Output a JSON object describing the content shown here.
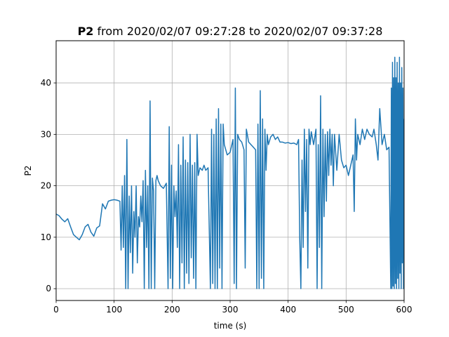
{
  "title": {
    "bold": "P2",
    "rest": " from 2020/02/07 09:27:28 to 2020/02/07 09:37:28"
  },
  "chart_data": {
    "type": "line",
    "xlabel": "time (s)",
    "ylabel": "P2",
    "xlim": [
      0,
      600
    ],
    "ylim": [
      -2.3,
      48.2
    ],
    "grid": true,
    "line_color": "#1f77b4",
    "xticks": [
      0,
      100,
      200,
      300,
      400,
      500,
      600
    ],
    "yticks": [
      0,
      10,
      20,
      30,
      40
    ],
    "series": [
      {
        "points": [
          [
            0,
            14.5
          ],
          [
            5,
            14.2
          ],
          [
            10,
            13.5
          ],
          [
            15,
            13.0
          ],
          [
            20,
            13.6
          ],
          [
            25,
            12.0
          ],
          [
            30,
            10.5
          ],
          [
            35,
            10.0
          ],
          [
            40,
            9.5
          ],
          [
            45,
            10.5
          ],
          [
            50,
            12.0
          ],
          [
            55,
            12.5
          ],
          [
            60,
            11.0
          ],
          [
            65,
            10.2
          ],
          [
            70,
            11.8
          ],
          [
            75,
            12.2
          ],
          [
            80,
            16.5
          ],
          [
            85,
            15.5
          ],
          [
            90,
            17.0
          ],
          [
            95,
            17.2
          ],
          [
            100,
            17.3
          ],
          [
            105,
            17.2
          ],
          [
            110,
            17.0
          ],
          [
            112,
            7.5
          ],
          [
            114,
            20.0
          ],
          [
            116,
            8.0
          ],
          [
            118,
            22.0
          ],
          [
            120,
            0.0
          ],
          [
            122,
            29.0
          ],
          [
            124,
            0.0
          ],
          [
            126,
            18.0
          ],
          [
            128,
            7.0
          ],
          [
            130,
            20.0
          ],
          [
            132,
            3.0
          ],
          [
            134,
            15.0
          ],
          [
            136,
            10.0
          ],
          [
            138,
            20.0
          ],
          [
            140,
            5.0
          ],
          [
            142,
            14.0
          ],
          [
            144,
            12.0
          ],
          [
            146,
            18.0
          ],
          [
            148,
            13.0
          ],
          [
            150,
            21.0
          ],
          [
            152,
            0.0
          ],
          [
            154,
            23.0
          ],
          [
            156,
            8.0
          ],
          [
            158,
            20.0
          ],
          [
            160,
            0.0
          ],
          [
            162,
            36.5
          ],
          [
            164,
            0.0
          ],
          [
            166,
            21.5
          ],
          [
            168,
            19.0
          ],
          [
            170,
            0.0
          ],
          [
            172,
            21.0
          ],
          [
            174,
            22.0
          ],
          [
            176,
            21.0
          ],
          [
            178,
            20.5
          ],
          [
            180,
            20.0
          ],
          [
            185,
            19.5
          ],
          [
            190,
            20.5
          ],
          [
            193,
            0.0
          ],
          [
            195,
            31.5
          ],
          [
            197,
            2.0
          ],
          [
            199,
            24.0
          ],
          [
            201,
            0.0
          ],
          [
            203,
            20.0
          ],
          [
            205,
            14.0
          ],
          [
            207,
            19.0
          ],
          [
            209,
            8.0
          ],
          [
            211,
            28.0
          ],
          [
            213,
            0.0
          ],
          [
            215,
            24.0
          ],
          [
            217,
            5.0
          ],
          [
            219,
            29.5
          ],
          [
            221,
            0.0
          ],
          [
            223,
            25.0
          ],
          [
            225,
            3.0
          ],
          [
            227,
            24.5
          ],
          [
            229,
            1.0
          ],
          [
            231,
            30.0
          ],
          [
            233,
            6.0
          ],
          [
            235,
            24.0
          ],
          [
            237,
            2.0
          ],
          [
            239,
            24.5
          ],
          [
            241,
            0.0
          ],
          [
            243,
            30.0
          ],
          [
            245,
            22.0
          ],
          [
            248,
            23.5
          ],
          [
            252,
            23.0
          ],
          [
            255,
            24.0
          ],
          [
            258,
            23.0
          ],
          [
            262,
            23.5
          ],
          [
            266,
            0.0
          ],
          [
            268,
            31.0
          ],
          [
            270,
            1.0
          ],
          [
            272,
            30.0
          ],
          [
            274,
            0.0
          ],
          [
            276,
            33.0
          ],
          [
            278,
            0.0
          ],
          [
            280,
            35.0
          ],
          [
            282,
            4.0
          ],
          [
            284,
            32.0
          ],
          [
            286,
            0.0
          ],
          [
            288,
            32.0
          ],
          [
            290,
            28.0
          ],
          [
            295,
            26.0
          ],
          [
            300,
            26.5
          ],
          [
            305,
            29.0
          ],
          [
            307,
            1.0
          ],
          [
            309,
            39.0
          ],
          [
            311,
            0.0
          ],
          [
            313,
            30.0
          ],
          [
            316,
            29.0
          ],
          [
            320,
            28.5
          ],
          [
            324,
            27.0
          ],
          [
            326,
            4.0
          ],
          [
            328,
            31.0
          ],
          [
            332,
            28.5
          ],
          [
            336,
            28.0
          ],
          [
            340,
            27.5
          ],
          [
            344,
            27.0
          ],
          [
            346,
            0.0
          ],
          [
            348,
            32.0
          ],
          [
            350,
            0.0
          ],
          [
            352,
            38.5
          ],
          [
            354,
            2.0
          ],
          [
            356,
            33.0
          ],
          [
            358,
            0.0
          ],
          [
            360,
            31.0
          ],
          [
            362,
            23.0
          ],
          [
            364,
            30.0
          ],
          [
            366,
            28.0
          ],
          [
            370,
            29.5
          ],
          [
            374,
            30.0
          ],
          [
            378,
            29.0
          ],
          [
            382,
            29.5
          ],
          [
            386,
            28.5
          ],
          [
            390,
            28.5
          ],
          [
            395,
            28.3
          ],
          [
            400,
            28.4
          ],
          [
            405,
            28.2
          ],
          [
            410,
            28.3
          ],
          [
            415,
            28.0
          ],
          [
            418,
            29.0
          ],
          [
            420,
            10.0
          ],
          [
            422,
            0.0
          ],
          [
            424,
            25.0
          ],
          [
            426,
            8.0
          ],
          [
            428,
            31.0
          ],
          [
            430,
            15.0
          ],
          [
            432,
            29.0
          ],
          [
            434,
            4.0
          ],
          [
            436,
            31.0
          ],
          [
            438,
            28.0
          ],
          [
            440,
            30.5
          ],
          [
            444,
            28.0
          ],
          [
            448,
            31.0
          ],
          [
            450,
            0.0
          ],
          [
            452,
            28.0
          ],
          [
            454,
            8.0
          ],
          [
            456,
            37.5
          ],
          [
            458,
            0.0
          ],
          [
            460,
            31.0
          ],
          [
            462,
            14.0
          ],
          [
            464,
            30.0
          ],
          [
            466,
            17.0
          ],
          [
            468,
            30.5
          ],
          [
            470,
            22.0
          ],
          [
            472,
            31.0
          ],
          [
            474,
            24.0
          ],
          [
            476,
            30.0
          ],
          [
            478,
            20.0
          ],
          [
            480,
            30.0
          ],
          [
            484,
            23.0
          ],
          [
            488,
            30.0
          ],
          [
            492,
            25.0
          ],
          [
            496,
            23.5
          ],
          [
            500,
            24.0
          ],
          [
            504,
            22.0
          ],
          [
            508,
            24.0
          ],
          [
            512,
            26.0
          ],
          [
            514,
            15.0
          ],
          [
            516,
            33.0
          ],
          [
            518,
            25.0
          ],
          [
            520,
            30.0
          ],
          [
            524,
            28.0
          ],
          [
            528,
            31.0
          ],
          [
            532,
            29.0
          ],
          [
            536,
            31.0
          ],
          [
            540,
            30.0
          ],
          [
            545,
            29.5
          ],
          [
            548,
            31.0
          ],
          [
            552,
            28.0
          ],
          [
            555,
            25.0
          ],
          [
            558,
            35.0
          ],
          [
            562,
            28.0
          ],
          [
            566,
            30.0
          ],
          [
            570,
            27.0
          ],
          [
            574,
            27.5
          ],
          [
            577,
            0.0
          ],
          [
            578,
            39.0
          ],
          [
            579,
            0.0
          ],
          [
            580,
            44.0
          ],
          [
            581,
            0.5
          ],
          [
            582,
            41.0
          ],
          [
            583,
            0.0
          ],
          [
            584,
            45.0
          ],
          [
            585,
            1.0
          ],
          [
            586,
            41.0
          ],
          [
            587,
            0.0
          ],
          [
            588,
            44.0
          ],
          [
            589,
            2.0
          ],
          [
            590,
            40.0
          ],
          [
            591,
            0.0
          ],
          [
            592,
            45.0
          ],
          [
            593,
            3.0
          ],
          [
            594,
            40.0
          ],
          [
            595,
            0.0
          ],
          [
            596,
            43.0
          ],
          [
            597,
            5.0
          ],
          [
            598,
            39.0
          ],
          [
            599,
            0.0
          ],
          [
            600,
            33.0
          ]
        ]
      }
    ]
  }
}
